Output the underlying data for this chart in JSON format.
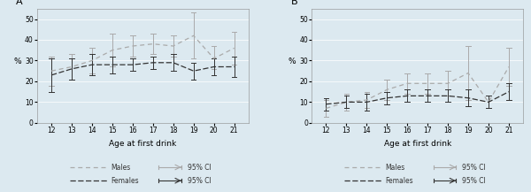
{
  "ages": [
    12,
    13,
    14,
    15,
    16,
    17,
    18,
    19,
    20,
    21
  ],
  "panel_A": {
    "title": "A",
    "males_mean": [
      25,
      27,
      30,
      35,
      37,
      38,
      37,
      42,
      31,
      36
    ],
    "males_ci_lo": [
      18,
      21,
      24,
      27,
      32,
      33,
      32,
      31,
      26,
      28
    ],
    "males_ci_hi": [
      32,
      33,
      36,
      43,
      42,
      43,
      42,
      53,
      37,
      44
    ],
    "females_mean": [
      23,
      26,
      28,
      28,
      28,
      29,
      29,
      25,
      27,
      27
    ],
    "females_ci_lo": [
      15,
      21,
      23,
      24,
      25,
      26,
      25,
      21,
      23,
      22
    ],
    "females_ci_hi": [
      31,
      31,
      33,
      32,
      31,
      32,
      33,
      29,
      31,
      32
    ],
    "ylim": [
      0,
      55
    ],
    "yticks": [
      0,
      10,
      20,
      30,
      40,
      50
    ]
  },
  "panel_B": {
    "title": "B",
    "males_mean": [
      7,
      10,
      11,
      16,
      19,
      19,
      19,
      24,
      10,
      27
    ],
    "males_ci_lo": [
      3,
      6,
      7,
      11,
      14,
      14,
      13,
      11,
      7,
      18
    ],
    "males_ci_hi": [
      11,
      14,
      15,
      21,
      24,
      24,
      25,
      37,
      13,
      36
    ],
    "females_mean": [
      9,
      10,
      10,
      12,
      13,
      13,
      13,
      12,
      10,
      15
    ],
    "females_ci_lo": [
      6,
      7,
      6,
      9,
      10,
      10,
      10,
      8,
      7,
      11
    ],
    "females_ci_hi": [
      12,
      13,
      14,
      15,
      16,
      16,
      16,
      16,
      13,
      19
    ],
    "ylim": [
      0,
      55
    ],
    "yticks": [
      0,
      10,
      20,
      30,
      40,
      50
    ]
  },
  "males_color": "#aaaaaa",
  "females_color": "#333333",
  "bg_color": "#dce9f0",
  "plot_bg": "#dce9f0",
  "xlabel": "Age at first drink",
  "ylabel": "%"
}
